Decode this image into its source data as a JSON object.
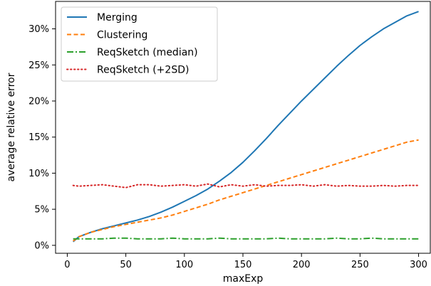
{
  "chart_data": {
    "type": "line",
    "xlabel": "maxExp",
    "ylabel": "average relative error",
    "xlim": [
      -10,
      310
    ],
    "ylim": [
      -0.011,
      0.338
    ],
    "xticks": [
      {
        "value": 0,
        "label": "0"
      },
      {
        "value": 50,
        "label": "50"
      },
      {
        "value": 100,
        "label": "100"
      },
      {
        "value": 150,
        "label": "150"
      },
      {
        "value": 200,
        "label": "200"
      },
      {
        "value": 250,
        "label": "250"
      },
      {
        "value": 300,
        "label": "300"
      }
    ],
    "yticks": [
      {
        "value": 0.0,
        "label": "0%"
      },
      {
        "value": 0.05,
        "label": "5%"
      },
      {
        "value": 0.1,
        "label": "10%"
      },
      {
        "value": 0.15,
        "label": "15%"
      },
      {
        "value": 0.2,
        "label": "20%"
      },
      {
        "value": 0.25,
        "label": "25%"
      },
      {
        "value": 0.3,
        "label": "30%"
      }
    ],
    "legend_position": "top-left",
    "series": [
      {
        "name": "Merging",
        "color": "#1f77b4",
        "style": "solid",
        "x": [
          5,
          10,
          20,
          30,
          40,
          50,
          60,
          70,
          80,
          90,
          100,
          110,
          120,
          130,
          140,
          150,
          160,
          170,
          180,
          190,
          200,
          210,
          220,
          230,
          240,
          250,
          260,
          270,
          280,
          290,
          300
        ],
        "y": [
          0.005,
          0.012,
          0.018,
          0.023,
          0.027,
          0.031,
          0.035,
          0.04,
          0.046,
          0.053,
          0.061,
          0.069,
          0.078,
          0.089,
          0.101,
          0.115,
          0.131,
          0.148,
          0.166,
          0.183,
          0.2,
          0.216,
          0.232,
          0.248,
          0.263,
          0.277,
          0.289,
          0.3,
          0.309,
          0.318,
          0.324
        ]
      },
      {
        "name": "Clustering",
        "color": "#ff7f0e",
        "style": "dashed",
        "x": [
          5,
          10,
          20,
          30,
          40,
          50,
          60,
          70,
          80,
          90,
          100,
          110,
          120,
          130,
          140,
          150,
          160,
          170,
          180,
          190,
          200,
          210,
          220,
          230,
          240,
          250,
          260,
          270,
          280,
          290,
          300
        ],
        "y": [
          0.006,
          0.012,
          0.018,
          0.022,
          0.026,
          0.029,
          0.032,
          0.035,
          0.038,
          0.042,
          0.047,
          0.052,
          0.057,
          0.063,
          0.068,
          0.073,
          0.078,
          0.083,
          0.088,
          0.093,
          0.098,
          0.103,
          0.108,
          0.113,
          0.118,
          0.123,
          0.128,
          0.133,
          0.138,
          0.143,
          0.146
        ]
      },
      {
        "name": "ReqSketch (median)",
        "color": "#2ca02c",
        "style": "dashdot",
        "x": [
          5,
          10,
          20,
          30,
          40,
          50,
          60,
          70,
          80,
          90,
          100,
          110,
          120,
          130,
          140,
          150,
          160,
          170,
          180,
          190,
          200,
          210,
          220,
          230,
          240,
          250,
          260,
          270,
          280,
          290,
          300
        ],
        "y": [
          0.009,
          0.009,
          0.009,
          0.009,
          0.01,
          0.01,
          0.009,
          0.009,
          0.009,
          0.01,
          0.009,
          0.009,
          0.009,
          0.01,
          0.009,
          0.009,
          0.009,
          0.009,
          0.01,
          0.009,
          0.009,
          0.009,
          0.009,
          0.01,
          0.009,
          0.009,
          0.01,
          0.009,
          0.009,
          0.009,
          0.009
        ]
      },
      {
        "name": "ReqSketch (+2SD)",
        "color": "#d62728",
        "style": "dotted",
        "x": [
          5,
          10,
          20,
          30,
          40,
          50,
          60,
          70,
          80,
          90,
          100,
          110,
          120,
          130,
          140,
          150,
          160,
          170,
          180,
          190,
          200,
          210,
          220,
          230,
          240,
          250,
          260,
          270,
          280,
          290,
          300
        ],
        "y": [
          0.083,
          0.082,
          0.083,
          0.084,
          0.082,
          0.08,
          0.084,
          0.084,
          0.082,
          0.083,
          0.084,
          0.082,
          0.085,
          0.081,
          0.084,
          0.082,
          0.084,
          0.082,
          0.083,
          0.083,
          0.084,
          0.082,
          0.084,
          0.082,
          0.083,
          0.082,
          0.082,
          0.083,
          0.082,
          0.083,
          0.083
        ]
      }
    ]
  }
}
